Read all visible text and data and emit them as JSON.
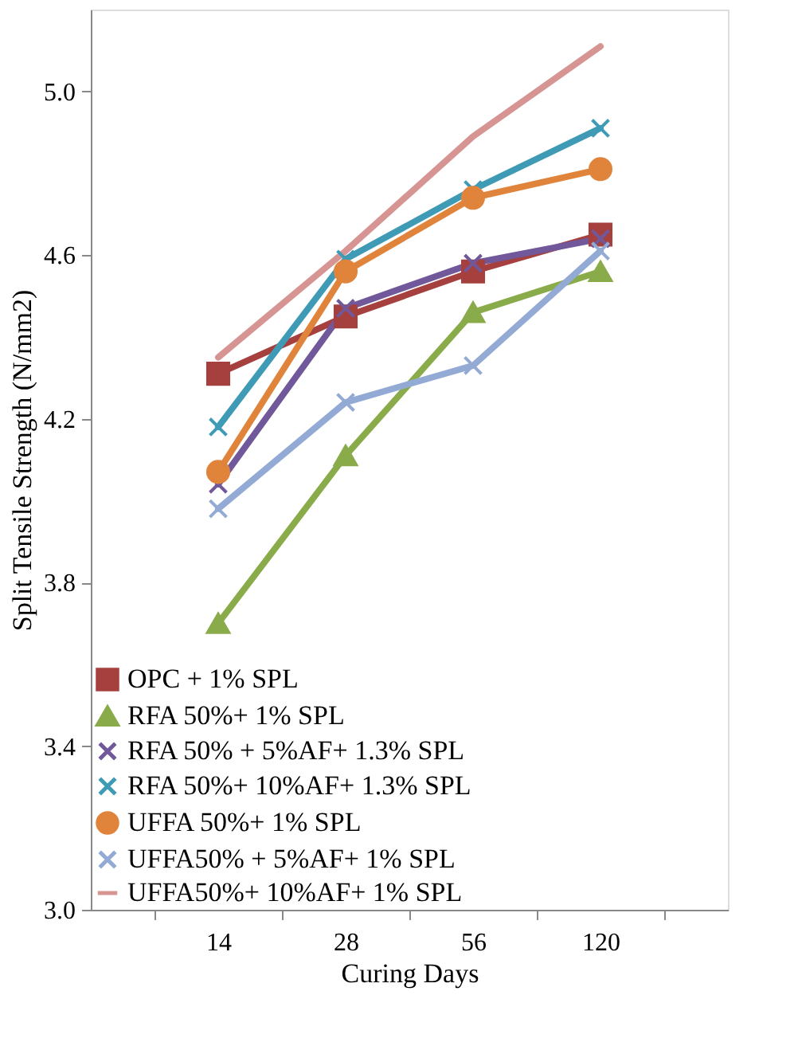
{
  "chart_data": {
    "type": "line",
    "xlabel": "Curing Days",
    "ylabel": "Split Tensile Strength (N/mm2)",
    "categories": [
      "14",
      "28",
      "56",
      "120"
    ],
    "ylim": [
      3.0,
      5.2
    ],
    "yticks": [
      {
        "value": 3,
        "label": "3.0"
      },
      3.4,
      3.8,
      4.2,
      4.6,
      {
        "value": 5,
        "label": "5.0"
      }
    ],
    "grid": false,
    "legend": "bottom left",
    "line_style": "solid",
    "series": [
      {
        "name": "OPC  + 1% SPL",
        "color": "#a5403e",
        "marker": "square",
        "values": [
          4.31,
          4.45,
          4.56,
          4.65
        ]
      },
      {
        "name": " RFA 50%+ 1% SPL",
        "color": "#8aab4a",
        "marker": "triangle",
        "values": [
          3.7,
          4.11,
          4.46,
          4.56
        ]
      },
      {
        "name": " RFA 50% + 5%AF+ 1.3% SPL",
        "color": "#71589a",
        "marker": "cross",
        "values": [
          4.04,
          4.47,
          4.58,
          4.64
        ]
      },
      {
        "name": "RFA 50%+ 10%AF+ 1.3% SPL",
        "color": "#3f9bb5",
        "marker": "cross",
        "values": [
          4.18,
          4.59,
          4.76,
          4.91
        ]
      },
      {
        "name": "UFFA 50%+ 1% SPL",
        "color": "#e0833b",
        "marker": "circle",
        "values": [
          4.07,
          4.56,
          4.74,
          4.81
        ]
      },
      {
        "name": " UFFA50% + 5%AF+ 1% SPL",
        "color": "#93aad4",
        "marker": "cross",
        "values": [
          3.98,
          4.24,
          4.33,
          4.61
        ]
      },
      {
        "name": " UFFA50%+ 10%AF+ 1% SPL",
        "color": "#d69593",
        "marker": "none",
        "values": [
          4.35,
          4.61,
          4.89,
          5.11
        ]
      }
    ]
  }
}
